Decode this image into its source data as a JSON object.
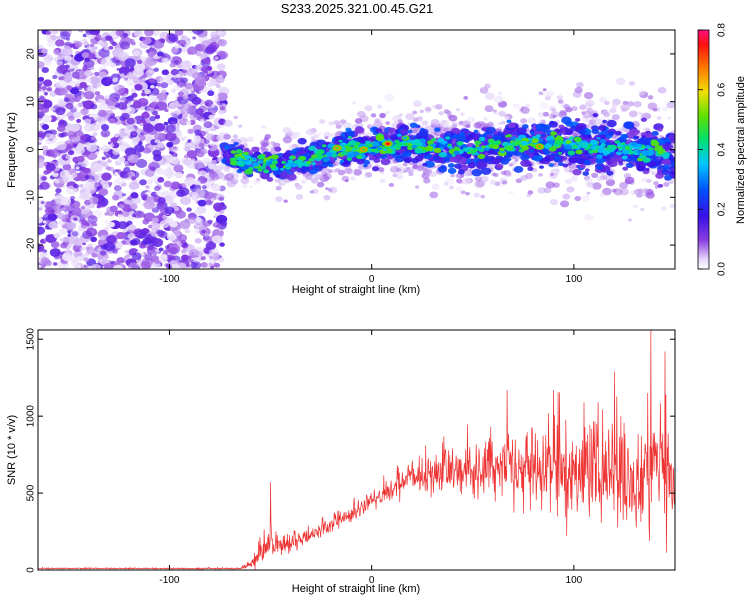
{
  "figure": {
    "title": "S233.2025.321.00.45.G21"
  },
  "chart_data": [
    {
      "type": "heatmap",
      "title": "S233.2025.321.00.45.G21",
      "xlabel": "Height of straight line (km)",
      "ylabel": "Frequency (Hz)",
      "xlim": [
        -165,
        150
      ],
      "ylim": [
        -25,
        25
      ],
      "xticks": [
        -100,
        0,
        100
      ],
      "yticks": [
        -20,
        -10,
        0,
        10,
        20
      ],
      "colorbar": {
        "label": "Normalized spectral amplitude",
        "range": [
          0.0,
          0.8
        ],
        "ticks": [
          "0.0",
          "0.2",
          "0.4",
          "0.6",
          "0.8"
        ]
      },
      "noise_region_x": [
        -165,
        -73
      ],
      "signal_center_hz": [
        [
          -73,
          -1
        ],
        [
          -60,
          -2.5
        ],
        [
          -45,
          -3.5
        ],
        [
          -30,
          -2
        ],
        [
          -15,
          0
        ],
        [
          0,
          0.5
        ],
        [
          15,
          1.5
        ],
        [
          30,
          0.5
        ],
        [
          50,
          0
        ],
        [
          70,
          1
        ],
        [
          90,
          1.5
        ],
        [
          110,
          0.5
        ],
        [
          130,
          0
        ],
        [
          150,
          -1
        ]
      ],
      "peak_spots": [
        {
          "x": -17,
          "y": 0.3,
          "amplitude": 0.8
        },
        {
          "x": -4,
          "y": 0.0,
          "amplitude": 0.8
        },
        {
          "x": 8,
          "y": 1.2,
          "amplitude": 0.75
        },
        {
          "x": 83,
          "y": 0.6,
          "amplitude": 0.8
        }
      ]
    },
    {
      "type": "line",
      "xlabel": "Height of straight line (km)",
      "ylabel": "SNR (10 * v/v)",
      "xlim": [
        -165,
        150
      ],
      "ylim": [
        0,
        1560
      ],
      "xticks": [
        -100,
        0,
        100
      ],
      "yticks": [
        0,
        500,
        1000,
        1500
      ],
      "series": [
        {
          "name": "SNR",
          "color": "#ee3333",
          "envelope": {
            "x": [
              -165,
              -65,
              -60,
              -55,
              -50,
              -45,
              -40,
              -30,
              -20,
              -10,
              0,
              10,
              20,
              30,
              50,
              70,
              90,
              110,
              130,
              150
            ],
            "mean": [
              10,
              10,
              40,
              120,
              170,
              150,
              170,
              230,
              300,
              360,
              440,
              520,
              600,
              620,
              650,
              680,
              660,
              630,
              600,
              560
            ],
            "spread": [
              6,
              6,
              40,
              120,
              120,
              100,
              90,
              70,
              70,
              70,
              80,
              100,
              120,
              160,
              250,
              320,
              370,
              400,
              430,
              460
            ]
          },
          "spikes": [
            {
              "x": -50,
              "y": 570
            },
            {
              "x": 35,
              "y": 830
            },
            {
              "x": 67,
              "y": 1170
            },
            {
              "x": 90,
              "y": 1170
            },
            {
              "x": 105,
              "y": 1090
            },
            {
              "x": 120,
              "y": 1290
            },
            {
              "x": 138,
              "y": 1560
            },
            {
              "x": 145,
              "y": 1420
            }
          ]
        }
      ]
    }
  ]
}
